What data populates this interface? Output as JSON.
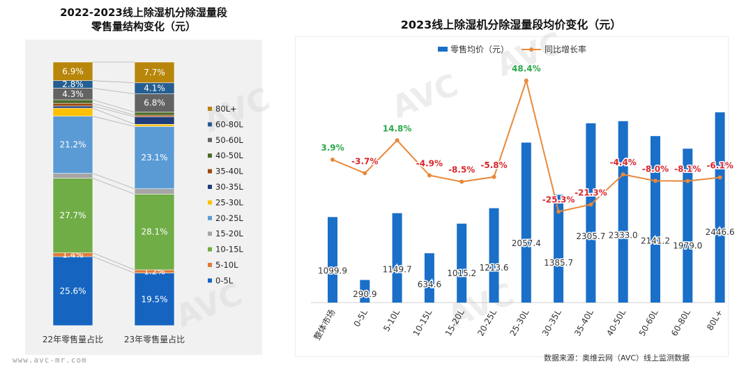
{
  "left_title_line1": "2022-2023线上除湿机分除湿量段",
  "left_title_line2": "零售量结构变化（元）",
  "right_title": "2023线上除湿机分除湿量段均价变化（元）",
  "source": "数据来源：奥维云网（AVC）线上监测数据",
  "site": "www.avc-mr.com",
  "watermark": "AVC 奥维云网 ALL VIEW CLOUD",
  "colors": {
    "price_bar": "#1a6fc8",
    "yoy_line": "#e8893a",
    "positive": "#2aa84a",
    "negative": "#d9262b"
  },
  "chart_data": [
    {
      "type": "bar",
      "stacked": true,
      "categories": [
        "22年零售量占比",
        "23年零售量占比"
      ],
      "series": [
        {
          "name": "0-5L",
          "color": "#1565c0",
          "values": [
            25.6,
            19.5
          ],
          "labels": [
            "25.6%",
            "19.5%"
          ]
        },
        {
          "name": "5-10L",
          "color": "#e07b39",
          "values": [
            1.4,
            1.2
          ],
          "labels": [
            "1.4%",
            "1.2%"
          ]
        },
        {
          "name": "10-15L",
          "color": "#70ad47",
          "values": [
            27.7,
            28.1
          ],
          "labels": [
            "27.7%",
            "28.1%"
          ]
        },
        {
          "name": "15-20L",
          "color": "#a6a6a6",
          "values": [
            1.8,
            2.0
          ],
          "labels": [
            "",
            ""
          ]
        },
        {
          "name": "20-25L",
          "color": "#5b9bd5",
          "values": [
            21.2,
            23.1
          ],
          "labels": [
            "21.2%",
            "23.1%"
          ]
        },
        {
          "name": "25-30L",
          "color": "#ffc000",
          "values": [
            3.0,
            0.8
          ],
          "labels": [
            "",
            ""
          ]
        },
        {
          "name": "30-35L",
          "color": "#1f3d7a",
          "values": [
            0.8,
            2.8
          ],
          "labels": [
            "",
            ""
          ]
        },
        {
          "name": "35-40L",
          "color": "#9e480e",
          "values": [
            1.0,
            0.6
          ],
          "labels": [
            "",
            ""
          ]
        },
        {
          "name": "40-50L",
          "color": "#4b6b2a",
          "values": [
            1.3,
            1.1
          ],
          "labels": [
            "",
            ""
          ]
        },
        {
          "name": "50-60L",
          "color": "#636363",
          "values": [
            4.3,
            6.8
          ],
          "labels": [
            "4.3%",
            "6.8%"
          ]
        },
        {
          "name": "60-80L",
          "color": "#255e91",
          "values": [
            2.8,
            4.1
          ],
          "labels": [
            "2.8%",
            "4.1%"
          ]
        },
        {
          "name": "80L+",
          "color": "#b8860b",
          "values": [
            6.9,
            7.7
          ],
          "labels": [
            "6.9%",
            "7.7%"
          ]
        }
      ],
      "legend_order": [
        "80L+",
        "60-80L",
        "50-60L",
        "40-50L",
        "35-40L",
        "30-35L",
        "25-30L",
        "20-25L",
        "15-20L",
        "10-15L",
        "5-10L",
        "0-5L"
      ],
      "legend_position": "right",
      "ylim": [
        0,
        100
      ]
    },
    {
      "type": "bar",
      "categories": [
        "整体市场",
        "0-5L",
        "5-10L",
        "10-15L",
        "15-20L",
        "20-25L",
        "25-30L",
        "30-35L",
        "35-40L",
        "40-50L",
        "50-60L",
        "60-80L",
        "80L+"
      ],
      "series": [
        {
          "name": "零售均价（元）",
          "type": "bar",
          "values": [
            1099.9,
            290.9,
            1149.7,
            634.6,
            1015.2,
            1213.6,
            2057.4,
            1385.7,
            2305.7,
            2333.0,
            2141.2,
            1979.0,
            2446.6
          ],
          "labels": [
            "1099.9",
            "290.9",
            "1149.7",
            "634.6",
            "1015.2",
            "1213.6",
            "2057.4",
            "1385.7",
            "2305.7",
            "2333.0",
            "2141.2",
            "1979.0",
            "2446.6"
          ]
        },
        {
          "name": "同比增长率",
          "type": "line",
          "values": [
            3.9,
            -3.7,
            14.8,
            -4.9,
            -8.5,
            -5.8,
            48.4,
            -25.3,
            -21.3,
            -4.4,
            -8.0,
            -8.1,
            -6.1
          ],
          "labels": [
            "3.9%",
            "-3.7%",
            "14.8%",
            "-4.9%",
            "-8.5%",
            "-5.8%",
            "48.4%",
            "-25.3%",
            "-21.3%",
            "-4.4%",
            "-8.0%",
            "-8.1%",
            "-6.1%"
          ]
        }
      ],
      "legend_position": "top"
    }
  ]
}
